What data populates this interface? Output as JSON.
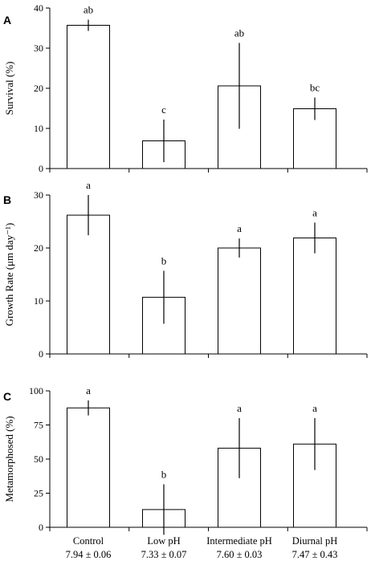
{
  "chart_data": [
    {
      "type": "bar",
      "panel_letter": "A",
      "ylabel": "Survival (%)",
      "ylim": [
        0,
        40
      ],
      "yticks": [
        0,
        10,
        20,
        30,
        40
      ],
      "categories": [
        "Control",
        "Low pH",
        "Intermediate pH",
        "Diurnal pH"
      ],
      "values": [
        35.7,
        6.9,
        20.6,
        14.9
      ],
      "error": [
        1.4,
        5.3,
        10.7,
        2.8
      ],
      "labels": [
        "ab",
        "c",
        "ab",
        "bc"
      ]
    },
    {
      "type": "bar",
      "panel_letter": "B",
      "ylabel": "Growth Rate (μm day⁻¹)",
      "ylim": [
        0,
        30
      ],
      "yticks": [
        0,
        10,
        20,
        30
      ],
      "categories": [
        "Control",
        "Low pH",
        "Intermediate pH",
        "Diurnal pH"
      ],
      "values": [
        26.2,
        10.7,
        20.0,
        21.9
      ],
      "error": [
        3.8,
        5.0,
        1.8,
        2.9
      ],
      "labels": [
        "a",
        "b",
        "a",
        "a"
      ]
    },
    {
      "type": "bar",
      "panel_letter": "C",
      "ylabel": "Metamorphosed (%)",
      "ylim": [
        0,
        100
      ],
      "yticks": [
        0,
        25,
        50,
        75,
        100
      ],
      "categories": [
        "Control",
        "Low pH",
        "Intermediate pH",
        "Diurnal pH"
      ],
      "values": [
        87.5,
        13.0,
        58.0,
        61.0
      ],
      "error": [
        5.5,
        18.5,
        22.0,
        19.0
      ],
      "labels": [
        "a",
        "b",
        "a",
        "a"
      ]
    }
  ],
  "x_axis": {
    "categories": [
      "Control",
      "Low pH",
      "Intermediate pH",
      "Diurnal pH"
    ],
    "sublabels": [
      "7.94 ± 0.06",
      "7.33 ± 0.07",
      "7.60 ± 0.03",
      "7.47 ± 0.43"
    ]
  }
}
